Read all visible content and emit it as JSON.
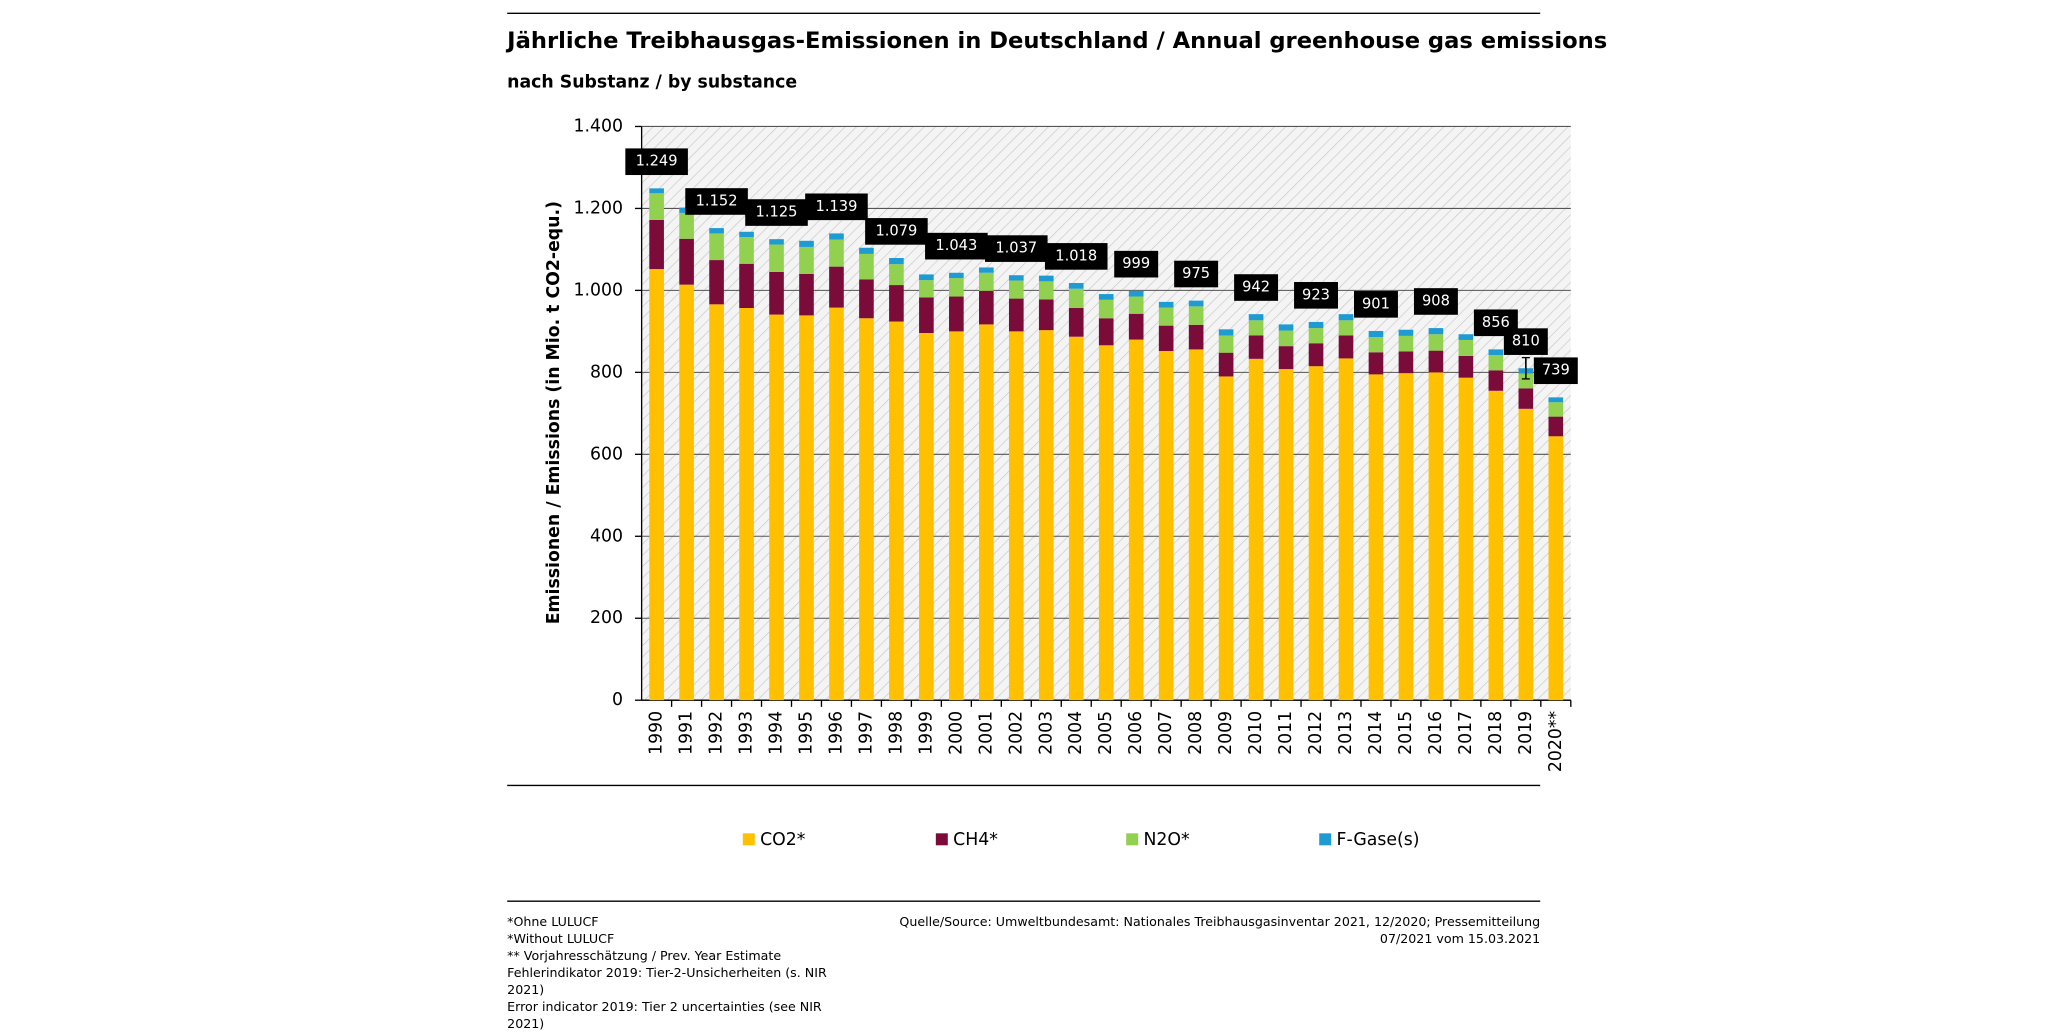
{
  "chart_data": {
    "type": "bar",
    "title": "Jährliche Treibhausgas-Emissionen in Deutschland / Annual greenhouse gas emissions",
    "subtitle": "nach Substanz / by substance",
    "y_label": "Emissionen / Emissions (in Mio. t CO2-equ.)",
    "categories": [
      "1990",
      "1991",
      "1992",
      "1993",
      "1994",
      "1995",
      "1996",
      "1997",
      "1998",
      "1999",
      "2000",
      "2001",
      "2002",
      "2003",
      "2004",
      "2005",
      "2006",
      "2007",
      "2008",
      "2009",
      "2010",
      "2011",
      "2012",
      "2013",
      "2014",
      "2015",
      "2016",
      "2017",
      "2018",
      "2019",
      "2020**"
    ],
    "series": [
      {
        "name": "CO2*",
        "color": "#ffc000",
        "values": [
          1052,
          1014,
          966,
          957,
          941,
          939,
          958,
          932,
          924,
          896,
          900,
          917,
          900,
          903,
          887,
          866,
          880,
          852,
          856,
          790,
          833,
          808,
          815,
          834,
          795,
          798,
          800,
          787,
          755,
          711,
          644
        ]
      },
      {
        "name": "CH4*",
        "color": "#7b0c3a",
        "values": [
          120,
          112,
          108,
          108,
          104,
          101,
          100,
          95,
          89,
          87,
          85,
          82,
          80,
          75,
          70,
          66,
          63,
          62,
          60,
          58,
          57,
          56,
          56,
          56,
          54,
          53,
          53,
          53,
          50,
          50,
          48
        ]
      },
      {
        "name": "N2O*",
        "color": "#92d050",
        "values": [
          65,
          63,
          65,
          65,
          67,
          66,
          66,
          62,
          51,
          42,
          45,
          44,
          44,
          44,
          47,
          45,
          42,
          44,
          45,
          42,
          37,
          38,
          37,
          37,
          37,
          38,
          40,
          39,
          37,
          36,
          35
        ]
      },
      {
        "name": "F-Gase(s)",
        "color": "#1f9bd4",
        "values": [
          12,
          13,
          13,
          13,
          13,
          15,
          15,
          15,
          15,
          14,
          13,
          13,
          13,
          14,
          14,
          14,
          14,
          14,
          14,
          15,
          15,
          15,
          15,
          15,
          15,
          15,
          15,
          14,
          14,
          13,
          12
        ]
      }
    ],
    "totals": {
      "values": [
        1249,
        null,
        1152,
        null,
        1125,
        null,
        1139,
        null,
        1079,
        null,
        1043,
        null,
        1037,
        null,
        1018,
        null,
        999,
        null,
        975,
        null,
        942,
        null,
        923,
        null,
        901,
        null,
        908,
        null,
        856,
        810,
        739
      ],
      "value_labels": [
        "1.249",
        null,
        "1.152",
        null,
        "1.125",
        null,
        "1.139",
        null,
        "1.079",
        null,
        "1.043",
        null,
        "1.037",
        null,
        "1.018",
        null,
        "999",
        null,
        "975",
        null,
        "942",
        null,
        "923",
        null,
        "901",
        null,
        "908",
        null,
        "856",
        "810",
        "739"
      ],
      "errors": [
        null,
        null,
        null,
        null,
        null,
        null,
        null,
        null,
        null,
        null,
        null,
        null,
        null,
        null,
        null,
        null,
        null,
        null,
        null,
        null,
        null,
        null,
        null,
        null,
        null,
        null,
        null,
        null,
        null,
        26,
        null
      ]
    },
    "ylim": [
      0,
      1400
    ],
    "yticks": [
      0,
      200,
      400,
      600,
      800,
      {
        "value": 1000,
        "label": "1.000"
      },
      {
        "value": 1200,
        "label": "1.200"
      },
      {
        "value": 1400,
        "label": "1.400"
      }
    ],
    "grid": true,
    "legend": "bottom",
    "footnotes": [
      "*Ohne LULUCF",
      "*Without LULUCF",
      "** Vorjahresschätzung / Prev. Year Estimate",
      "Fehlerindikator 2019: Tier-2-Unsicherheiten (s. NIR",
      "2021)",
      "Error indicator 2019: Tier 2 uncertainties (see NIR",
      "2021)"
    ],
    "source": [
      "Quelle/Source: Umweltbundesamt: Nationales Treibhausgasinventar 2021, 12/2020; Pressemitteilung",
      "07/2021 vom 15.03.2021"
    ]
  }
}
